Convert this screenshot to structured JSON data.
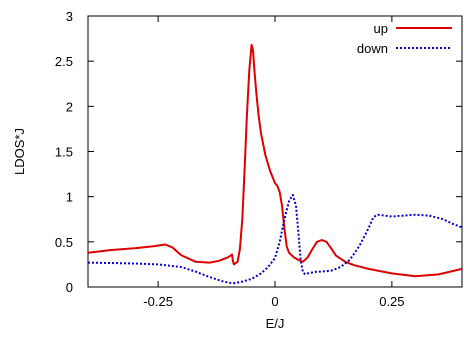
{
  "chart_data": {
    "type": "line",
    "title": "",
    "xlabel": "E/J",
    "ylabel": "LDOS*J",
    "xlim": [
      -0.4,
      0.4
    ],
    "ylim": [
      0,
      3
    ],
    "x_ticks": [
      -0.25,
      0,
      0.25
    ],
    "x_tick_labels": [
      "-0.25",
      "0",
      "0.25"
    ],
    "y_ticks": [
      0,
      0.5,
      1,
      1.5,
      2,
      2.5,
      3
    ],
    "y_tick_labels": [
      "0",
      "0.5",
      "1",
      "1.5",
      "2",
      "2.5",
      "3"
    ],
    "grid": false,
    "legend_position": "top-right",
    "series": [
      {
        "name": "up",
        "color": "#dd0000",
        "style": "solid",
        "x": [
          -0.4,
          -0.35,
          -0.3,
          -0.26,
          -0.235,
          -0.22,
          -0.2,
          -0.17,
          -0.14,
          -0.12,
          -0.1,
          -0.092,
          -0.09,
          -0.088,
          -0.08,
          -0.075,
          -0.07,
          -0.065,
          -0.06,
          -0.055,
          -0.05,
          -0.047,
          -0.044,
          -0.04,
          -0.035,
          -0.03,
          -0.02,
          -0.01,
          0,
          0.005,
          0.01,
          0.015,
          0.02,
          0.025,
          0.03,
          0.04,
          0.05,
          0.06,
          0.07,
          0.08,
          0.09,
          0.1,
          0.11,
          0.12,
          0.13,
          0.15,
          0.17,
          0.2,
          0.25,
          0.3,
          0.35,
          0.4
        ],
        "y": [
          0.38,
          0.41,
          0.43,
          0.45,
          0.47,
          0.44,
          0.35,
          0.28,
          0.27,
          0.29,
          0.33,
          0.36,
          0.29,
          0.25,
          0.28,
          0.42,
          0.75,
          1.3,
          1.9,
          2.4,
          2.68,
          2.62,
          2.4,
          2.15,
          1.9,
          1.7,
          1.45,
          1.28,
          1.15,
          1.12,
          1.05,
          0.9,
          0.65,
          0.45,
          0.38,
          0.33,
          0.3,
          0.28,
          0.33,
          0.42,
          0.5,
          0.52,
          0.5,
          0.43,
          0.35,
          0.28,
          0.24,
          0.2,
          0.15,
          0.12,
          0.14,
          0.2
        ]
      },
      {
        "name": "down",
        "color": "#0000cc",
        "style": "dotted",
        "x": [
          -0.4,
          -0.3,
          -0.25,
          -0.2,
          -0.17,
          -0.14,
          -0.11,
          -0.09,
          -0.07,
          -0.05,
          -0.03,
          -0.015,
          0,
          0.01,
          0.02,
          0.03,
          0.038,
          0.045,
          0.05,
          0.055,
          0.06,
          0.065,
          0.07,
          0.08,
          0.09,
          0.1,
          0.12,
          0.14,
          0.16,
          0.18,
          0.2,
          0.21,
          0.22,
          0.25,
          0.3,
          0.33,
          0.36,
          0.38,
          0.4
        ],
        "y": [
          0.27,
          0.26,
          0.25,
          0.22,
          0.17,
          0.11,
          0.06,
          0.04,
          0.06,
          0.09,
          0.15,
          0.22,
          0.32,
          0.5,
          0.75,
          0.95,
          1.02,
          0.9,
          0.6,
          0.3,
          0.16,
          0.14,
          0.15,
          0.16,
          0.17,
          0.17,
          0.18,
          0.22,
          0.3,
          0.45,
          0.65,
          0.77,
          0.8,
          0.78,
          0.8,
          0.79,
          0.75,
          0.7,
          0.66
        ]
      }
    ]
  }
}
